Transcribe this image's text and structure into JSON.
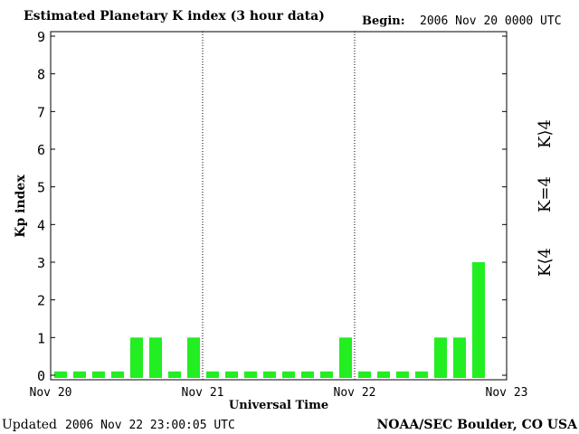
{
  "header": {
    "title": "Estimated Planetary K index (3 hour data)",
    "begin_label": "Begin:",
    "begin_value": "2006 Nov 20 0000 UTC"
  },
  "footer": {
    "updated_label": "Updated",
    "updated_value": "2006 Nov 22 23:00:05 UTC",
    "credit": "NOAA/SEC Boulder, CO USA"
  },
  "legend": [
    {
      "label": "K⟨4",
      "color": "#22ee22"
    },
    {
      "label": "K=4",
      "color": "#ffcc00"
    },
    {
      "label": "K⟩4",
      "color": "#ee2200"
    }
  ],
  "chart_data": {
    "type": "bar",
    "ylabel": "Kp index",
    "xlabel": "Universal Time",
    "ylim": [
      0,
      9
    ],
    "yticks": [
      0,
      1,
      2,
      3,
      4,
      5,
      6,
      7,
      8,
      9
    ],
    "xtick_labels": [
      "Nov 20",
      "Nov 21",
      "Nov 22",
      "Nov 23"
    ],
    "interval_hours": 3,
    "values": [
      0,
      0,
      0,
      0,
      1,
      1,
      0,
      1,
      0,
      0,
      0,
      0,
      0,
      0,
      0,
      1,
      0,
      0,
      0,
      0,
      1,
      1,
      3
    ],
    "bar_color": "#22ee22",
    "day_dividers": true
  }
}
